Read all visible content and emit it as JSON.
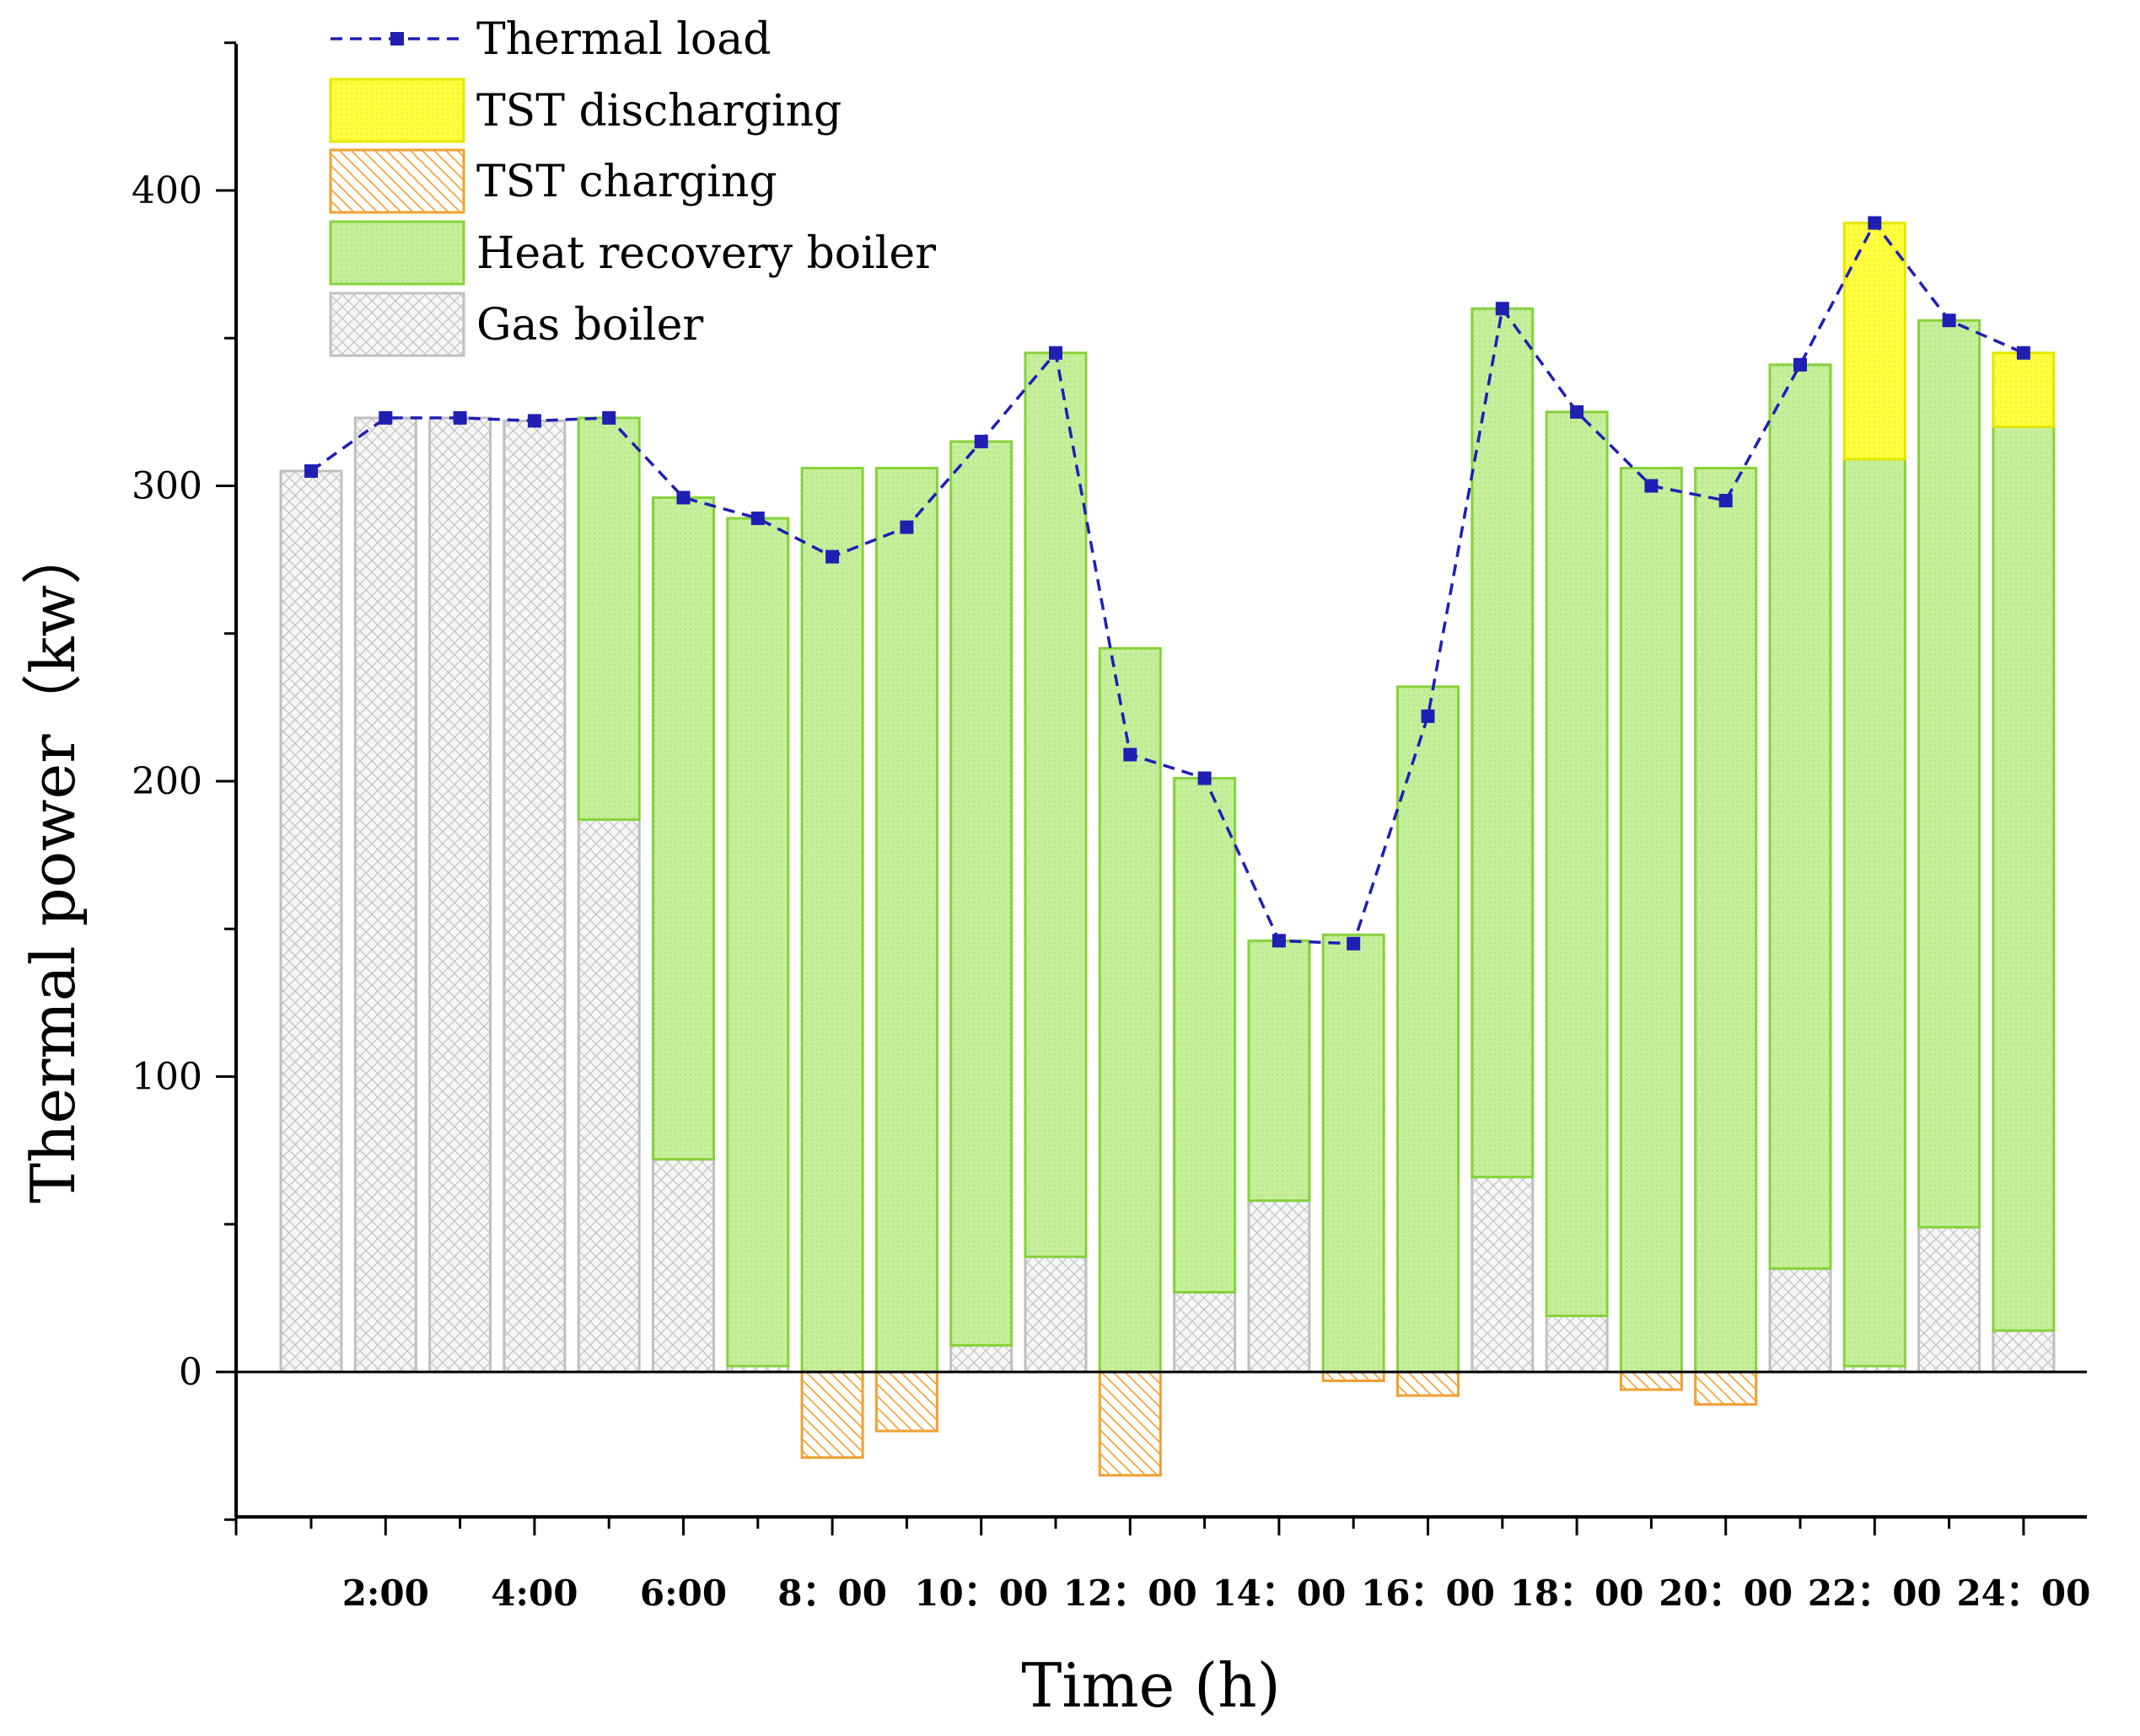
{
  "chart_data": {
    "type": "bar",
    "stacked": true,
    "xlabel": "Time (h)",
    "ylabel": "Thermal power（kw）",
    "ylim": [
      -50,
      450
    ],
    "yticks": [
      0,
      100,
      200,
      300,
      400
    ],
    "hours": [
      1,
      2,
      3,
      4,
      5,
      6,
      7,
      8,
      9,
      10,
      11,
      12,
      13,
      14,
      15,
      16,
      17,
      18,
      19,
      20,
      21,
      22,
      23,
      24
    ],
    "xtick_labels": [
      {
        "hour": 2,
        "label": "2:00"
      },
      {
        "hour": 4,
        "label": "4:00"
      },
      {
        "hour": 6,
        "label": "6:00"
      },
      {
        "hour": 8,
        "label": "8：00"
      },
      {
        "hour": 10,
        "label": "10：00"
      },
      {
        "hour": 12,
        "label": "12：00"
      },
      {
        "hour": 14,
        "label": "14：00"
      },
      {
        "hour": 16,
        "label": "16：00"
      },
      {
        "hour": 18,
        "label": "18：00"
      },
      {
        "hour": 20,
        "label": "20：00"
      },
      {
        "hour": 22,
        "label": "22：00"
      },
      {
        "hour": 24,
        "label": "24：00"
      }
    ],
    "legend_position": "top-left",
    "series": [
      {
        "name": "Thermal load",
        "kind": "line",
        "color": "#1f1fb4",
        "values": [
          305,
          323,
          323,
          322,
          323,
          296,
          289,
          276,
          286,
          315,
          345,
          209,
          201,
          146,
          145,
          222,
          360,
          325,
          300,
          295,
          341,
          389,
          356,
          345
        ]
      },
      {
        "name": "TST discharging",
        "kind": "bar",
        "color": "#ffff33",
        "edge": "#e6e600",
        "values": [
          0,
          0,
          0,
          0,
          0,
          0,
          0,
          0,
          0,
          0,
          0,
          0,
          0,
          0,
          0,
          0,
          0,
          0,
          0,
          0,
          0,
          80,
          0,
          25
        ]
      },
      {
        "name": "TST charging",
        "kind": "bar",
        "color": "#ffffff",
        "edge": "#f0a030",
        "values": [
          0,
          0,
          0,
          0,
          0,
          0,
          0,
          -29,
          -20,
          0,
          0,
          -35,
          0,
          0,
          -3,
          -8,
          0,
          0,
          -6,
          -11,
          0,
          0,
          0,
          0
        ]
      },
      {
        "name": "Heat recovery boiler",
        "kind": "bar",
        "color": "#c6ef9b",
        "edge": "#86d23a",
        "values": [
          0,
          0,
          0,
          0,
          136,
          224,
          287,
          306,
          306,
          306,
          306,
          245,
          174,
          88,
          148,
          232,
          294,
          306,
          306,
          306,
          306,
          307,
          307,
          306
        ]
      },
      {
        "name": "Gas boiler",
        "kind": "bar",
        "color": "#f4f4f4",
        "edge": "#c0c0c0",
        "values": [
          305,
          323,
          323,
          322,
          187,
          72,
          2,
          0,
          0,
          9,
          39,
          0,
          27,
          58,
          0,
          0,
          66,
          19,
          0,
          0,
          35,
          2,
          49,
          14
        ]
      }
    ]
  }
}
